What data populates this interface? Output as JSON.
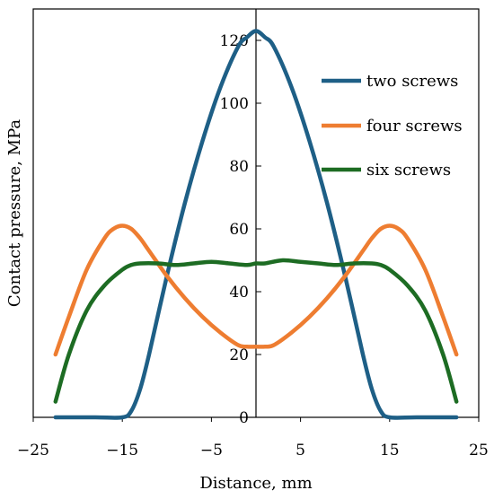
{
  "chart_data": {
    "type": "line",
    "title": "",
    "xlabel": "Distance, mm",
    "ylabel": "Contact pressure, MPa",
    "xlim": [
      -25,
      25
    ],
    "ylim": [
      0,
      130
    ],
    "xticks": [
      -25,
      -15,
      -5,
      5,
      15,
      25
    ],
    "yticks": [
      0,
      20,
      40,
      60,
      80,
      100,
      120
    ],
    "xtick_labels": [
      "−25",
      "−15",
      "−5",
      "5",
      "15",
      "25"
    ],
    "ytick_labels": [
      "0",
      "20",
      "40",
      "60",
      "80",
      "100",
      "120"
    ],
    "grid": false,
    "legend": {
      "position": "top-right",
      "entries": [
        "two screws",
        "four screws",
        "six screws"
      ]
    },
    "series": [
      {
        "name": "two screws",
        "color": "#1e5f86",
        "x": [
          -22.5,
          -18,
          -15,
          -14,
          -13,
          -12,
          -10,
          -8,
          -6,
          -4,
          -2,
          -1,
          0,
          1,
          2,
          4,
          6,
          8,
          10,
          12,
          13,
          14,
          15,
          18,
          22.5
        ],
        "y": [
          0,
          0,
          0,
          2,
          9,
          20,
          45,
          68,
          88,
          105,
          118,
          121,
          123,
          121,
          118,
          105,
          88,
          68,
          45,
          20,
          9,
          2,
          0,
          0,
          0
        ]
      },
      {
        "name": "four screws",
        "color": "#ee7d31",
        "x": [
          -22.5,
          -21,
          -19,
          -17,
          -16,
          -15,
          -14,
          -13,
          -12,
          -10,
          -8,
          -6,
          -4,
          -2,
          -1,
          0,
          1,
          2,
          4,
          6,
          8,
          10,
          12,
          13,
          14,
          15,
          16,
          17,
          19,
          21,
          22.5
        ],
        "y": [
          20,
          32,
          47,
          57,
          60,
          61,
          60,
          57,
          53,
          45,
          38,
          32,
          27,
          23,
          22.5,
          22.5,
          22.5,
          23,
          27,
          32,
          38,
          45,
          53,
          57,
          60,
          61,
          60,
          57,
          47,
          32,
          20
        ]
      },
      {
        "name": "six screws",
        "color": "#1d6c23",
        "x": [
          -22.5,
          -21,
          -19,
          -17,
          -15,
          -14,
          -13,
          -11,
          -9,
          -7,
          -5,
          -3,
          -1,
          0,
          1,
          3,
          5,
          7,
          9,
          11,
          13,
          14,
          15,
          17,
          19,
          21,
          22.5
        ],
        "y": [
          5,
          20,
          34,
          42,
          47,
          48.5,
          49,
          49,
          48.5,
          49,
          49.5,
          49,
          48.5,
          49,
          49,
          50,
          49.5,
          49,
          48.5,
          49,
          49,
          48.5,
          47,
          42,
          34,
          20,
          5
        ]
      }
    ]
  }
}
